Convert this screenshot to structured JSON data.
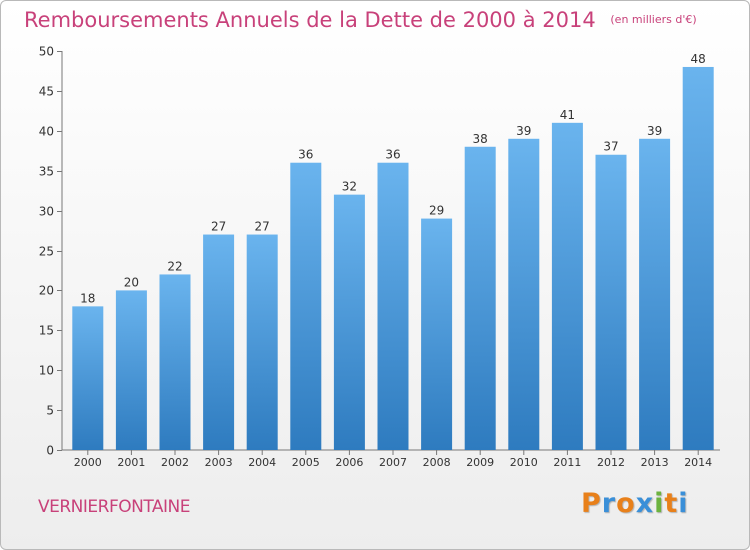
{
  "chart_data": {
    "type": "bar",
    "title": "Remboursements Annuels de la Dette de 2000 à 2014",
    "subtitle": "(en milliers d'€)",
    "categories": [
      "2000",
      "2001",
      "2002",
      "2003",
      "2004",
      "2005",
      "2006",
      "2007",
      "2008",
      "2009",
      "2010",
      "2011",
      "2012",
      "2013",
      "2014"
    ],
    "values": [
      18,
      20,
      22,
      27,
      27,
      36,
      32,
      36,
      29,
      38,
      39,
      41,
      37,
      39,
      48
    ],
    "ylim": [
      0,
      50
    ],
    "yticks": [
      0,
      5,
      10,
      15,
      20,
      25,
      30,
      35,
      40,
      45,
      50
    ],
    "xlabel": "",
    "ylabel": "",
    "grid": false,
    "bar_color_top": "#6ab4ee",
    "bar_color_bottom": "#2e7bbf"
  },
  "footer": {
    "commune": "VERNIERFONTAINE",
    "logo": [
      "P",
      "r",
      "o",
      "x",
      "i",
      "t",
      "i"
    ],
    "logo_colors": [
      "#e8801a",
      "#3a8fd8",
      "#e8801a",
      "#3a8fd8",
      "#6cb33f",
      "#e8801a",
      "#3a8fd8"
    ]
  }
}
